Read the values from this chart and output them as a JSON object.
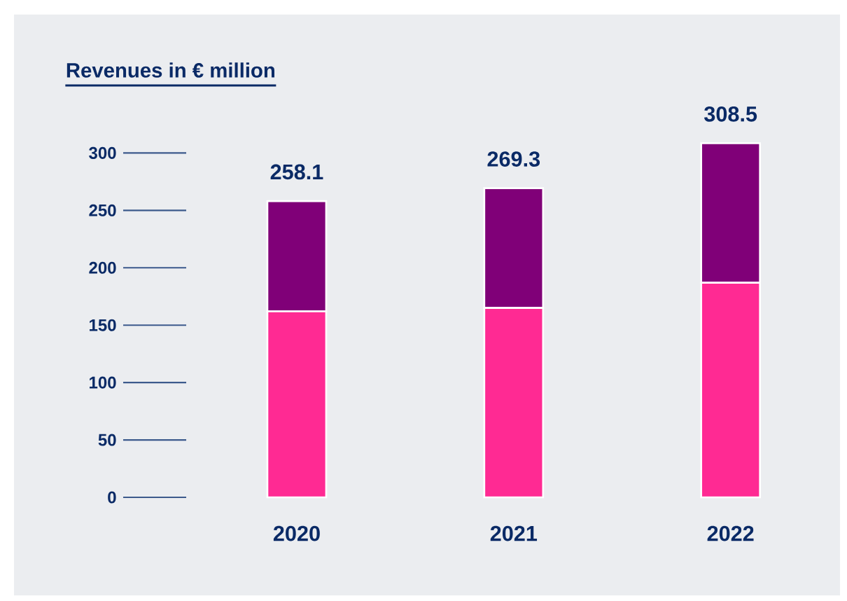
{
  "chart_data": {
    "type": "bar",
    "title": "Revenues in € million",
    "stacked": true,
    "categories": [
      "2020",
      "2021",
      "2022"
    ],
    "series": [
      {
        "color": "#ff2a93",
        "values": [
          162,
          165,
          187
        ]
      },
      {
        "color": "#800078",
        "values": [
          96.1,
          104.3,
          121.5
        ]
      }
    ],
    "totals": [
      "258.1",
      "269.3",
      "308.5"
    ],
    "ylim": [
      0,
      310
    ],
    "yticks": [
      0,
      50,
      100,
      150,
      200,
      250,
      300
    ]
  }
}
